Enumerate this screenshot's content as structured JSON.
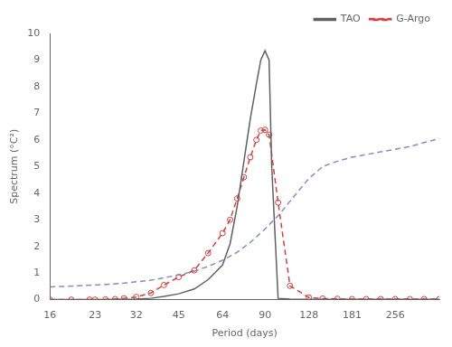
{
  "chart_data": {
    "type": "line",
    "xlabel": "Period (days)",
    "ylabel": "Spectrum (°C²)",
    "log": "x",
    "xlim": [
      16,
      365
    ],
    "ylim": [
      0,
      10
    ],
    "xticks": [
      16,
      23,
      32,
      45,
      64,
      90,
      128,
      181,
      256
    ],
    "yticks": [
      0,
      1,
      2,
      3,
      4,
      5,
      6,
      7,
      8,
      9,
      10
    ],
    "grid": false,
    "legend": "upper right",
    "series": [
      {
        "color": "#8888cc",
        "line_style": "dashed",
        "x": [
          16,
          18,
          20,
          23,
          26,
          29,
          32,
          36,
          40,
          45,
          51,
          57,
          64,
          72,
          80,
          90,
          101,
          113,
          128,
          143,
          161,
          181,
          203,
          228,
          256,
          288,
          323,
          365
        ],
        "values": [
          0.48,
          0.5,
          0.52,
          0.55,
          0.58,
          0.62,
          0.67,
          0.73,
          0.82,
          0.93,
          1.07,
          1.25,
          1.48,
          1.78,
          2.15,
          2.65,
          3.2,
          3.85,
          4.55,
          5.0,
          5.2,
          5.35,
          5.45,
          5.55,
          5.65,
          5.75,
          5.9,
          6.05
        ]
      },
      {
        "name": "TAO",
        "color": "#606060",
        "line_style": "solid",
        "x": [
          16,
          19,
          22,
          23,
          25,
          27,
          29,
          32,
          36,
          40,
          45,
          51,
          57,
          64,
          68,
          72,
          76,
          80,
          84,
          87,
          90,
          93,
          95,
          100,
          110,
          128,
          143,
          161,
          181,
          203,
          228,
          256,
          288,
          323,
          365
        ],
        "values": [
          0.0,
          0.0,
          0.0,
          0.0,
          0.0,
          0.01,
          0.01,
          0.02,
          0.05,
          0.12,
          0.22,
          0.4,
          0.75,
          1.3,
          2.1,
          3.5,
          5.2,
          6.8,
          8.1,
          9.0,
          9.35,
          9.0,
          5.0,
          0.05,
          0.02,
          0.01,
          0.01,
          0.01,
          0.01,
          0.01,
          0.01,
          0.01,
          0.01,
          0.01,
          0.01
        ]
      },
      {
        "name": "G-Argo",
        "color": "#d04040",
        "line_style": "dashed",
        "marker": "circle",
        "x": [
          16,
          19,
          22,
          23,
          25,
          27,
          29,
          32,
          36,
          40,
          45,
          51,
          57,
          64,
          68,
          72,
          76,
          80,
          84,
          87,
          90,
          93,
          100,
          110,
          128,
          143,
          161,
          181,
          203,
          228,
          256,
          288,
          323,
          365
        ],
        "values": [
          0.0,
          0.0,
          0.0,
          0.0,
          0.01,
          0.02,
          0.05,
          0.1,
          0.25,
          0.55,
          0.85,
          1.1,
          1.75,
          2.5,
          3.0,
          3.8,
          4.6,
          5.35,
          6.0,
          6.35,
          6.38,
          6.2,
          3.65,
          0.52,
          0.08,
          0.04,
          0.03,
          0.02,
          0.02,
          0.02,
          0.02,
          0.02,
          0.02,
          0.02
        ]
      }
    ]
  }
}
